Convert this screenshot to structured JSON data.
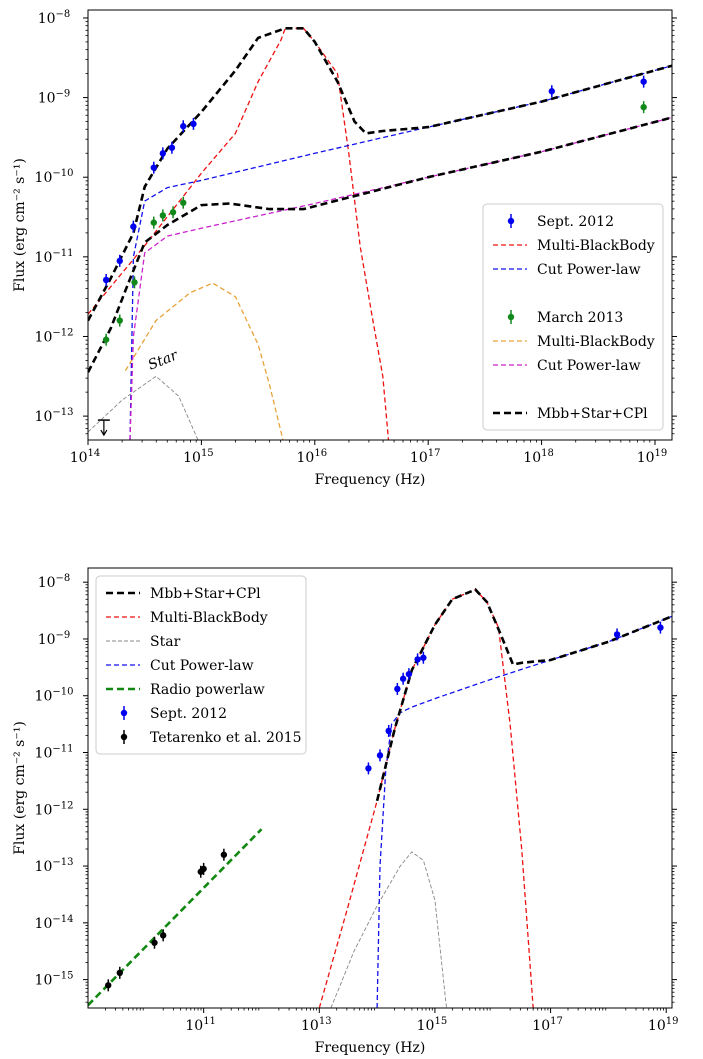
{
  "chart_data": [
    {
      "type": "line",
      "xlabel": "Frequency (Hz)",
      "ylabel": "Flux (erg cm⁻² s⁻¹)",
      "xscale": "log",
      "yscale": "log",
      "xlim_log10": [
        14,
        19.15
      ],
      "ylim_log10": [
        -13.3,
        -7.9
      ],
      "x_ticks": [
        {
          "v": 14,
          "t": "10",
          "e": "14"
        },
        {
          "v": 15,
          "t": "10",
          "e": "15"
        },
        {
          "v": 16,
          "t": "10",
          "e": "16"
        },
        {
          "v": 17,
          "t": "10",
          "e": "17"
        },
        {
          "v": 18,
          "t": "10",
          "e": "18"
        },
        {
          "v": 19,
          "t": "10",
          "e": "19"
        }
      ],
      "y_ticks": [
        {
          "v": -8,
          "t": "10",
          "e": "−8"
        },
        {
          "v": -9,
          "t": "10",
          "e": "−9"
        },
        {
          "v": -10,
          "t": "10",
          "e": "−10"
        },
        {
          "v": -11,
          "t": "10",
          "e": "−11"
        },
        {
          "v": -12,
          "t": "10",
          "e": "−12"
        },
        {
          "v": -13,
          "t": "10",
          "e": "−13"
        }
      ],
      "annotation": "Star",
      "legend_position": "right",
      "legend": [
        {
          "label": "Sept. 2012",
          "kind": "point",
          "color": "#0000ee"
        },
        {
          "label": "Multi-BlackBody",
          "kind": "dashed",
          "color": "#ee1111"
        },
        {
          "label": "Cut Power-law",
          "kind": "dashed",
          "color": "#1111ee"
        },
        {
          "label": "",
          "kind": "blank"
        },
        {
          "label": "March 2013",
          "kind": "point",
          "color": "#11881a"
        },
        {
          "label": "Multi-BlackBody",
          "kind": "dashed",
          "color": "#e8a33a"
        },
        {
          "label": "Cut Power-law",
          "kind": "dashed",
          "color": "#cc22cc"
        },
        {
          "label": "",
          "kind": "blank"
        },
        {
          "label": "Mbb+Star+CPl",
          "kind": "dashed-thick",
          "color": "#000000"
        }
      ],
      "series": [
        {
          "name": "Sept. 2012",
          "kind": "points",
          "color": "#0000ee",
          "points": [
            [
              14.16,
              -11.29
            ],
            [
              14.28,
              -11.05
            ],
            [
              14.4,
              -10.62
            ],
            [
              14.58,
              -9.88
            ],
            [
              14.66,
              -9.7
            ],
            [
              14.74,
              -9.63
            ],
            [
              14.84,
              -9.36
            ],
            [
              14.93,
              -9.33
            ],
            [
              18.09,
              -8.92
            ],
            [
              18.9,
              -8.8
            ]
          ]
        },
        {
          "name": "March 2013",
          "kind": "points",
          "color": "#11881a",
          "points": [
            [
              14.16,
              -12.04
            ],
            [
              14.28,
              -11.8
            ],
            [
              14.41,
              -11.32
            ],
            [
              14.58,
              -10.57
            ],
            [
              14.66,
              -10.48
            ],
            [
              14.75,
              -10.44
            ],
            [
              14.84,
              -10.32
            ],
            [
              18.9,
              -9.12
            ]
          ]
        },
        {
          "name": "Multi-BlackBody",
          "kind": "dashed",
          "color": "#ee1111",
          "points": [
            [
              14,
              -11.72
            ],
            [
              14.5,
              -10.86
            ],
            [
              15,
              -9.95
            ],
            [
              15.3,
              -9.45
            ],
            [
              15.5,
              -8.8
            ],
            [
              15.7,
              -8.28
            ],
            [
              15.74,
              -8.13
            ],
            [
              15.9,
              -8.13
            ],
            [
              16,
              -8.3
            ],
            [
              16.2,
              -8.7
            ],
            [
              16.3,
              -9.7
            ],
            [
              16.4,
              -10.87
            ],
            [
              16.5,
              -11.7
            ],
            [
              16.6,
              -12.5
            ],
            [
              16.65,
              -13.3
            ]
          ]
        },
        {
          "name": "Cut Power-law",
          "kind": "dashed",
          "color": "#1111ee",
          "points": [
            [
              14.37,
              -13.3
            ],
            [
              14.4,
              -11.0
            ],
            [
              14.5,
              -10.3
            ],
            [
              14.7,
              -10.13
            ],
            [
              15,
              -10.04
            ],
            [
              16,
              -9.7
            ],
            [
              17,
              -9.37
            ],
            [
              18,
              -9.05
            ],
            [
              19.15,
              -8.6
            ]
          ]
        },
        {
          "name": "Multi-BlackBody",
          "kind": "dashed",
          "color": "#e8a33a",
          "points": [
            [
              14.33,
              -12.43
            ],
            [
              14.6,
              -11.8
            ],
            [
              14.9,
              -11.45
            ],
            [
              15.1,
              -11.33
            ],
            [
              15.3,
              -11.5
            ],
            [
              15.5,
              -12.1
            ],
            [
              15.6,
              -12.6
            ],
            [
              15.72,
              -13.3
            ]
          ]
        },
        {
          "name": "Cut Power-law",
          "kind": "dashed",
          "color": "#cc22cc",
          "points": [
            [
              14.37,
              -13.3
            ],
            [
              14.4,
              -12.0
            ],
            [
              14.5,
              -10.95
            ],
            [
              14.7,
              -10.74
            ],
            [
              15,
              -10.64
            ],
            [
              16,
              -10.33
            ],
            [
              17,
              -10.0
            ],
            [
              18,
              -9.68
            ],
            [
              19.15,
              -9.25
            ]
          ]
        },
        {
          "name": "Star",
          "kind": "thin",
          "color": "#888888",
          "points": [
            [
              14,
              -13.2
            ],
            [
              14.3,
              -12.8
            ],
            [
              14.6,
              -12.5
            ],
            [
              14.8,
              -12.75
            ],
            [
              14.97,
              -13.3
            ]
          ]
        },
        {
          "name": "Mbb+Star+CPl",
          "kind": "dashed-thick",
          "color": "#000000",
          "points": [
            [
              14,
              -11.8
            ],
            [
              14.2,
              -11.27
            ],
            [
              14.4,
              -10.7
            ],
            [
              14.5,
              -10.12
            ],
            [
              14.7,
              -9.64
            ],
            [
              15,
              -9.18
            ],
            [
              15.3,
              -8.66
            ],
            [
              15.5,
              -8.25
            ],
            [
              15.74,
              -8.13
            ],
            [
              15.9,
              -8.13
            ],
            [
              16,
              -8.3
            ],
            [
              16.2,
              -8.8
            ],
            [
              16.35,
              -9.3
            ],
            [
              16.45,
              -9.45
            ],
            [
              16.6,
              -9.42
            ],
            [
              17,
              -9.37
            ],
            [
              18,
              -9.05
            ],
            [
              19.15,
              -8.6
            ]
          ]
        },
        {
          "name": "Mbb+Star+CPl",
          "kind": "dashed-thick",
          "color": "#000000",
          "points": [
            [
              14,
              -12.45
            ],
            [
              14.2,
              -11.9
            ],
            [
              14.35,
              -11.35
            ],
            [
              14.5,
              -10.82
            ],
            [
              14.7,
              -10.6
            ],
            [
              15,
              -10.35
            ],
            [
              15.25,
              -10.33
            ],
            [
              15.6,
              -10.4
            ],
            [
              15.9,
              -10.4
            ],
            [
              17,
              -10.0
            ],
            [
              18,
              -9.68
            ],
            [
              19.15,
              -9.25
            ]
          ]
        }
      ],
      "upper_limit": {
        "x": 14.14,
        "y": -13.05
      }
    },
    {
      "type": "line",
      "xlabel": "Frequency (Hz)",
      "ylabel": "Flux (erg cm⁻² s⁻¹)",
      "xscale": "log",
      "yscale": "log",
      "xlim_log10": [
        9.0,
        19.1
      ],
      "ylim_log10": [
        -15.5,
        -7.75
      ],
      "x_ticks": [
        {
          "v": 11,
          "t": "10",
          "e": "11"
        },
        {
          "v": 13,
          "t": "10",
          "e": "13"
        },
        {
          "v": 15,
          "t": "10",
          "e": "15"
        },
        {
          "v": 17,
          "t": "10",
          "e": "17"
        },
        {
          "v": 19,
          "t": "10",
          "e": "19"
        }
      ],
      "y_ticks": [
        {
          "v": -8,
          "t": "10",
          "e": "−8"
        },
        {
          "v": -9,
          "t": "10",
          "e": "−9"
        },
        {
          "v": -10,
          "t": "10",
          "e": "−10"
        },
        {
          "v": -11,
          "t": "10",
          "e": "−11"
        },
        {
          "v": -12,
          "t": "10",
          "e": "−12"
        },
        {
          "v": -13,
          "t": "10",
          "e": "−13"
        },
        {
          "v": -14,
          "t": "10",
          "e": "−14"
        },
        {
          "v": -15,
          "t": "10",
          "e": "−15"
        }
      ],
      "legend_position": "top-left",
      "legend": [
        {
          "label": "Mbb+Star+CPl",
          "kind": "dashed-thick",
          "color": "#000000"
        },
        {
          "label": "Multi-BlackBody",
          "kind": "dashed",
          "color": "#ee1111"
        },
        {
          "label": "Star",
          "kind": "thin",
          "color": "#888888"
        },
        {
          "label": "Cut Power-law",
          "kind": "dashed",
          "color": "#1111ee"
        },
        {
          "label": "Radio powerlaw",
          "kind": "dashed-thick",
          "color": "#118811"
        },
        {
          "label": "Sept. 2012",
          "kind": "point",
          "color": "#0000ee"
        },
        {
          "label": "Tetarenko et al. 2015",
          "kind": "point",
          "color": "#000000"
        }
      ],
      "series": [
        {
          "name": "Radio powerlaw",
          "kind": "dashed-thick",
          "color": "#118811",
          "points": [
            [
              9.0,
              -15.45
            ],
            [
              12.0,
              -12.35
            ]
          ]
        },
        {
          "name": "Tetarenko et al. 2015",
          "kind": "points",
          "color": "#000000",
          "points": [
            [
              9.35,
              -15.1
            ],
            [
              9.55,
              -14.88
            ],
            [
              10.15,
              -14.35
            ],
            [
              10.3,
              -14.22
            ],
            [
              10.95,
              -13.1
            ],
            [
              11.0,
              -13.05
            ],
            [
              11.35,
              -12.8
            ]
          ]
        },
        {
          "name": "Sept. 2012",
          "kind": "points",
          "color": "#0000ee",
          "points": [
            [
              13.85,
              -11.28
            ],
            [
              14.05,
              -11.05
            ],
            [
              14.2,
              -10.62
            ],
            [
              14.35,
              -9.88
            ],
            [
              14.45,
              -9.7
            ],
            [
              14.55,
              -9.62
            ],
            [
              14.7,
              -9.36
            ],
            [
              14.8,
              -9.33
            ],
            [
              18.15,
              -8.92
            ],
            [
              18.9,
              -8.8
            ]
          ]
        },
        {
          "name": "Multi-BlackBody",
          "kind": "dashed",
          "color": "#ee1111",
          "points": [
            [
              13.0,
              -15.5
            ],
            [
              13.5,
              -13.7
            ],
            [
              14.0,
              -11.85
            ],
            [
              14.3,
              -10.6
            ],
            [
              14.6,
              -9.55
            ],
            [
              15.0,
              -8.75
            ],
            [
              15.3,
              -8.3
            ],
            [
              15.7,
              -8.13
            ],
            [
              15.9,
              -8.35
            ],
            [
              16.1,
              -8.8
            ],
            [
              16.3,
              -10.5
            ],
            [
              16.5,
              -12.7
            ],
            [
              16.7,
              -15.5
            ]
          ]
        },
        {
          "name": "Star",
          "kind": "thin",
          "color": "#888888",
          "points": [
            [
              13.2,
              -15.5
            ],
            [
              13.6,
              -14.5
            ],
            [
              14.0,
              -13.7
            ],
            [
              14.4,
              -13.0
            ],
            [
              14.6,
              -12.75
            ],
            [
              14.8,
              -12.9
            ],
            [
              15.0,
              -13.6
            ],
            [
              15.2,
              -15.5
            ]
          ]
        },
        {
          "name": "Cut Power-law",
          "kind": "dashed",
          "color": "#1111ee",
          "points": [
            [
              14.0,
              -15.5
            ],
            [
              14.05,
              -13.0
            ],
            [
              14.15,
              -11.3
            ],
            [
              14.25,
              -10.5
            ],
            [
              14.4,
              -10.3
            ],
            [
              14.6,
              -10.2
            ],
            [
              15,
              -10.05
            ],
            [
              16,
              -9.7
            ],
            [
              17,
              -9.37
            ],
            [
              18,
              -9.05
            ],
            [
              19.1,
              -8.6
            ]
          ]
        },
        {
          "name": "Mbb+Star+CPl",
          "kind": "dashed-thick",
          "color": "#000000",
          "points": [
            [
              14.0,
              -11.85
            ],
            [
              14.3,
              -10.6
            ],
            [
              14.6,
              -9.55
            ],
            [
              15.0,
              -8.75
            ],
            [
              15.3,
              -8.3
            ],
            [
              15.7,
              -8.13
            ],
            [
              15.9,
              -8.35
            ],
            [
              16.15,
              -8.95
            ],
            [
              16.35,
              -9.45
            ],
            [
              16.5,
              -9.42
            ],
            [
              17,
              -9.37
            ],
            [
              18,
              -9.05
            ],
            [
              19.1,
              -8.6
            ]
          ]
        }
      ]
    }
  ]
}
